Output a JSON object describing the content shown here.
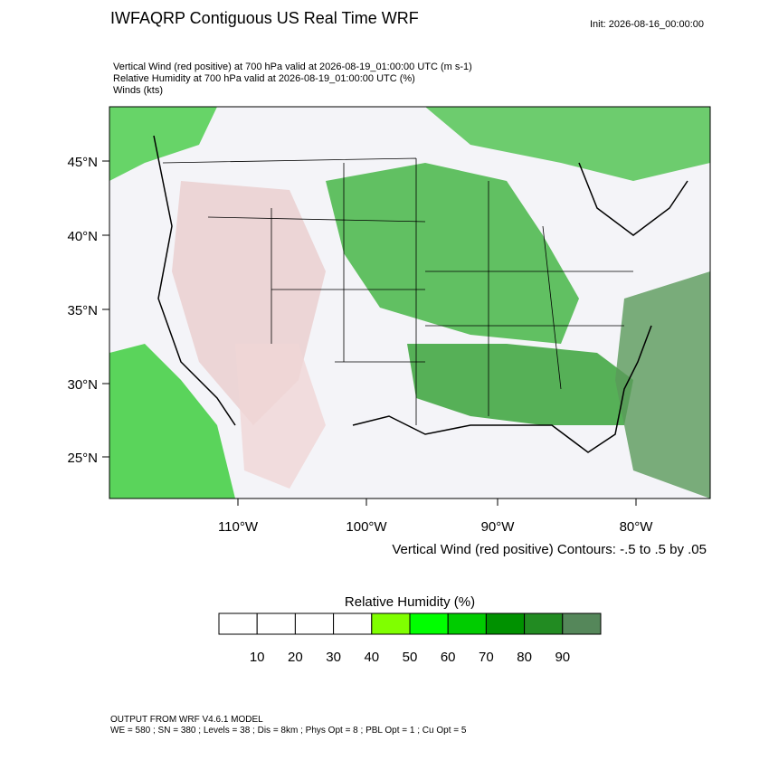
{
  "header": {
    "title": "IWFAQRP Contiguous US Real Time WRF",
    "init": "Init: 2026-08-16_00:00:00",
    "lines": [
      "Vertical Wind (red positive) at 700 hPa valid at 2026-08-19_01:00:00 UTC   (m s-1)",
      "Relative Humidity at 700 hPa valid at 2026-08-19_01:00:00 UTC   (%)",
      "Winds   (kts)"
    ]
  },
  "map": {
    "lat_labels": [
      "45°N",
      "40°N",
      "35°N",
      "30°N",
      "25°N"
    ],
    "lon_labels": [
      "110°W",
      "100°W",
      "90°W",
      "80°W"
    ],
    "contour_info": "Vertical Wind (red positive) Contours: -.5 to .5 by .05"
  },
  "colorbar": {
    "title": "Relative Humidity  (%)",
    "colors": [
      "#ffffff",
      "#ffffff",
      "#ffffff",
      "#ffffff",
      "#80ff00",
      "#00ff00",
      "#00cc00",
      "#009100",
      "#228b22",
      "#55875a"
    ],
    "labels": [
      "10",
      "20",
      "30",
      "40",
      "50",
      "60",
      "70",
      "80",
      "90"
    ]
  },
  "footer": {
    "lines": [
      "OUTPUT FROM WRF V4.6.1 MODEL",
      "WE = 580 ; SN = 380 ; Levels = 38 ; Dis = 8km ; Phys Opt = 8 ; PBL Opt = 1 ; Cu Opt = 5"
    ]
  }
}
